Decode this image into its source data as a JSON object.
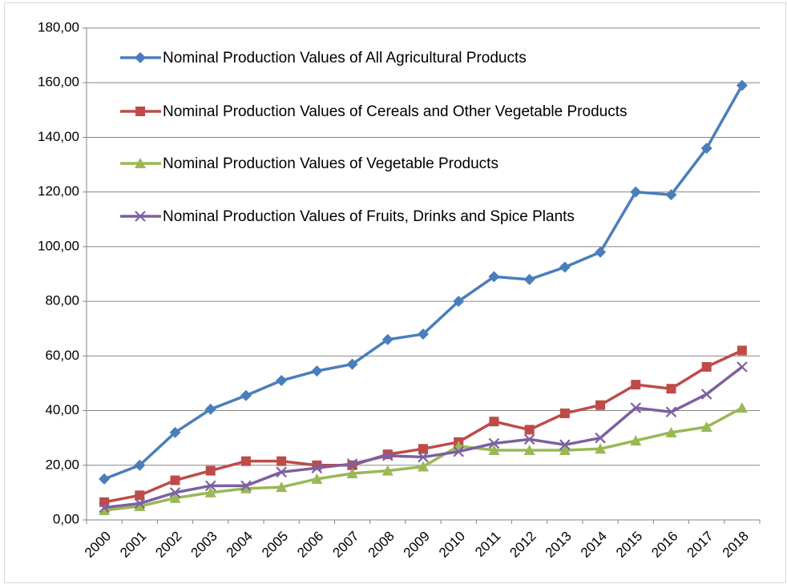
{
  "chart_data": {
    "type": "line",
    "categories": [
      "2000",
      "2001",
      "2002",
      "2003",
      "2004",
      "2005",
      "2006",
      "2007",
      "2008",
      "2009",
      "2010",
      "2011",
      "2012",
      "2013",
      "2014",
      "2015",
      "2016",
      "2017",
      "2018"
    ],
    "series": [
      {
        "name": "Nominal Production Values of All Agricultural Products",
        "color": "#4a7ebb",
        "marker": "diamond",
        "values": [
          15,
          20,
          32,
          40.5,
          45.5,
          51,
          54.5,
          57,
          66,
          68,
          80,
          89,
          88,
          92.5,
          98,
          120,
          119,
          136,
          159
        ]
      },
      {
        "name": "Nominal Production Values of Cereals and Other Vegetable Products",
        "color": "#be4b48",
        "marker": "square",
        "values": [
          6.5,
          9,
          14.5,
          18,
          21.5,
          21.5,
          20,
          20,
          24,
          26,
          28.5,
          36,
          33,
          39,
          42,
          49.5,
          48,
          56,
          62
        ]
      },
      {
        "name": "Nominal Production Values of Vegetable Products",
        "color": "#98b954",
        "marker": "triangle",
        "values": [
          3.5,
          5,
          8,
          10,
          11.5,
          12,
          15,
          17,
          18,
          19.5,
          27,
          25.5,
          25.5,
          25.5,
          26,
          29,
          32,
          34,
          41
        ]
      },
      {
        "name": "Nominal Production Values of Fruits, Drinks and Spice Plants",
        "color": "#7d60a0",
        "marker": "x",
        "values": [
          4.5,
          6,
          10,
          12.5,
          12.5,
          17.5,
          19,
          20.5,
          23.5,
          23,
          25,
          28,
          29.5,
          27.5,
          30,
          41,
          39.5,
          46,
          56
        ]
      }
    ],
    "ylim": [
      0,
      180
    ],
    "yticks": [
      {
        "value": 0,
        "label": "0,00"
      },
      {
        "value": 20,
        "label": "20,00"
      },
      {
        "value": 40,
        "label": "40,00"
      },
      {
        "value": 60,
        "label": "60,00"
      },
      {
        "value": 80,
        "label": "80,00"
      },
      {
        "value": 100,
        "label": "100,00"
      },
      {
        "value": 120,
        "label": "120,00"
      },
      {
        "value": 140,
        "label": "140,00"
      },
      {
        "value": 160,
        "label": "160,00"
      },
      {
        "value": 180,
        "label": "180,00"
      }
    ],
    "grid": true,
    "legend": "top-left"
  }
}
